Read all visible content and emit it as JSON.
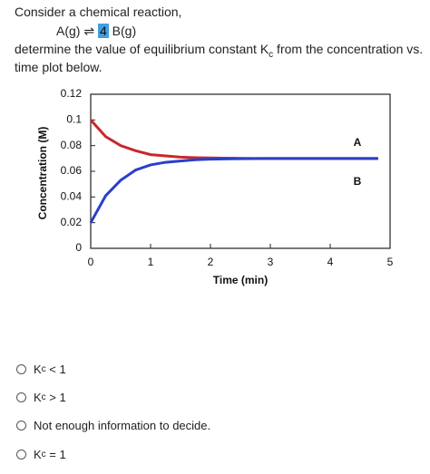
{
  "question": {
    "intro": "Consider a chemical reaction,",
    "equation": [
      "A(g) ⇌ ",
      "4",
      " B(g)"
    ],
    "prompt": [
      "determine the value of equilibrium constant K",
      "c",
      " from the concentration vs."
    ],
    "prompt_end": "time plot below."
  },
  "chart_data": {
    "type": "line",
    "x_label": "Time (min)",
    "y_label": "Concentration (M)",
    "x": [
      0,
      0.25,
      0.5,
      0.75,
      1,
      1.25,
      1.5,
      1.75,
      2,
      2.5,
      3,
      3.5,
      4,
      4.5,
      4.8
    ],
    "series": [
      {
        "name": "A",
        "color": "#c8282d",
        "values": [
          0.1,
          0.087,
          0.08,
          0.076,
          0.073,
          0.072,
          0.071,
          0.0706,
          0.0704,
          0.0701,
          0.07,
          0.07,
          0.07,
          0.07,
          0.07
        ]
      },
      {
        "name": "B",
        "color": "#2b3fc9",
        "values": [
          0.02,
          0.041,
          0.053,
          0.061,
          0.065,
          0.067,
          0.068,
          0.069,
          0.0694,
          0.0698,
          0.07,
          0.07,
          0.07,
          0.07,
          0.07
        ]
      }
    ],
    "xlim": [
      0,
      5
    ],
    "xticks": [
      0,
      1,
      2,
      3,
      4,
      5
    ],
    "ylim": [
      0,
      0.12
    ],
    "yticks": [
      0,
      0.02,
      0.04,
      0.06,
      0.08,
      0.1,
      0.12
    ],
    "grid": false
  },
  "options": [
    {
      "parts": [
        "K",
        "c",
        " < 1"
      ]
    },
    {
      "parts": [
        "K",
        "c",
        " > 1"
      ]
    },
    {
      "parts": [
        "Not enough information to decide."
      ]
    },
    {
      "parts": [
        "K",
        "c",
        " = 1"
      ]
    }
  ]
}
